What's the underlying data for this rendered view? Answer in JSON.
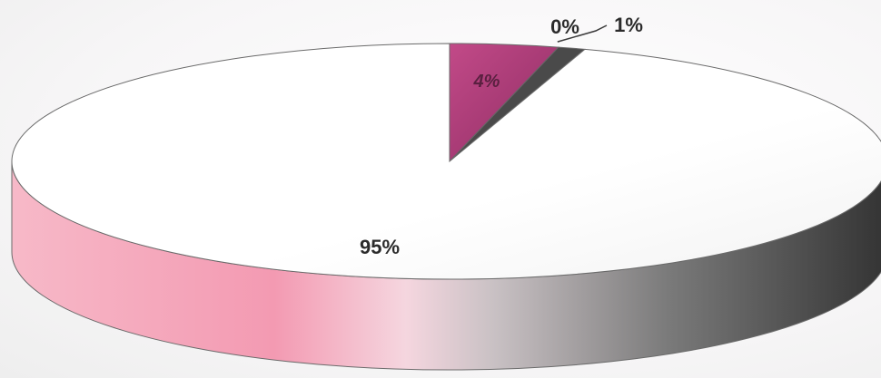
{
  "chart_data": {
    "type": "pie",
    "style": "3d",
    "series": [
      {
        "values": [
          95,
          4,
          0,
          1
        ],
        "labels": [
          "95%",
          "4%",
          "0%",
          "1%"
        ]
      }
    ],
    "colors": {
      "slice_95": "#ffffff",
      "slice_4": "#b0417a",
      "slice_0": "#7a2d5a",
      "slice_1": "#4a4a4a",
      "side_left": "#f4a9bd",
      "side_right": "#3e3e3e"
    },
    "grid": false,
    "legend": "none"
  }
}
